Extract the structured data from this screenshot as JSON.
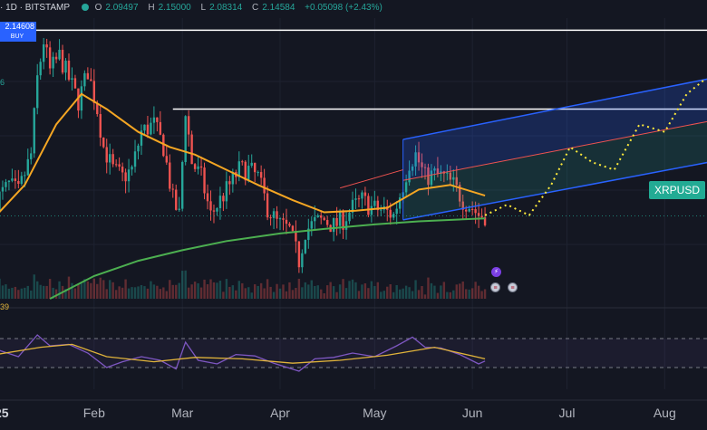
{
  "header": {
    "symbol_text": "· 1D · BITSTAMP",
    "ohlc": [
      {
        "key": "O",
        "value": "2.09497"
      },
      {
        "key": "H",
        "value": "2.15000"
      },
      {
        "key": "L",
        "value": "2.08314"
      },
      {
        "key": "C",
        "value": "2.14584"
      },
      {
        "key": "",
        "value": "+0.05098 (+2.43%)"
      }
    ]
  },
  "buy_box": {
    "price": "2.14608",
    "label": "BUY"
  },
  "left_tick_label": "6",
  "price_tag": {
    "label": "XRPUSD"
  },
  "indicator": {
    "label": "39"
  },
  "colors": {
    "up": "#26a69a",
    "down": "#ef5350",
    "ma_short": "#f5a623",
    "ma_long": "#4caf50",
    "channel": "#2962ff",
    "projection": "#ffeb3b",
    "oscillator": "#7e57c2",
    "signal": "#e0b33a"
  },
  "chart_data": {
    "type": "candlestick",
    "symbol": "XRPUSD",
    "exchange": "BITSTAMP",
    "interval": "1D",
    "x_range": [
      "2025-01-01",
      "2025-08-15"
    ],
    "y_range": [
      1.6,
      3.45
    ],
    "x_tick_labels": [
      {
        "date": "2025-01-01",
        "label": "25"
      },
      {
        "date": "2025-02-01",
        "label": "Feb"
      },
      {
        "date": "2025-03-01",
        "label": "Mar"
      },
      {
        "date": "2025-04-01",
        "label": "Apr"
      },
      {
        "date": "2025-05-01",
        "label": "May"
      },
      {
        "date": "2025-06-01",
        "label": "Jun"
      },
      {
        "date": "2025-07-01",
        "label": "Jul"
      },
      {
        "date": "2025-08-01",
        "label": "Aug"
      }
    ],
    "price_path": [
      [
        "2025-01-01",
        2.25
      ],
      [
        "2025-01-05",
        2.35
      ],
      [
        "2025-01-08",
        2.3
      ],
      [
        "2025-01-12",
        2.55
      ],
      [
        "2025-01-14",
        3.05
      ],
      [
        "2025-01-16",
        3.3
      ],
      [
        "2025-01-18",
        3.1
      ],
      [
        "2025-01-21",
        3.2
      ],
      [
        "2025-01-24",
        3.05
      ],
      [
        "2025-01-27",
        2.9
      ],
      [
        "2025-01-30",
        3.1
      ],
      [
        "2025-02-02",
        2.85
      ],
      [
        "2025-02-04",
        2.6
      ],
      [
        "2025-02-07",
        2.45
      ],
      [
        "2025-02-10",
        2.4
      ],
      [
        "2025-02-13",
        2.45
      ],
      [
        "2025-02-16",
        2.7
      ],
      [
        "2025-02-20",
        2.75
      ],
      [
        "2025-02-23",
        2.6
      ],
      [
        "2025-02-26",
        2.25
      ],
      [
        "2025-02-28",
        2.15
      ],
      [
        "2025-03-02",
        2.85
      ],
      [
        "2025-03-04",
        2.5
      ],
      [
        "2025-03-07",
        2.4
      ],
      [
        "2025-03-10",
        2.15
      ],
      [
        "2025-03-13",
        2.25
      ],
      [
        "2025-03-16",
        2.35
      ],
      [
        "2025-03-19",
        2.45
      ],
      [
        "2025-03-22",
        2.45
      ],
      [
        "2025-03-25",
        2.4
      ],
      [
        "2025-03-28",
        2.2
      ],
      [
        "2025-03-31",
        2.1
      ],
      [
        "2025-04-04",
        2.05
      ],
      [
        "2025-04-07",
        1.85
      ],
      [
        "2025-04-09",
        2.05
      ],
      [
        "2025-04-12",
        2.1
      ],
      [
        "2025-04-15",
        2.12
      ],
      [
        "2025-04-18",
        2.08
      ],
      [
        "2025-04-21",
        2.12
      ],
      [
        "2025-04-24",
        2.2
      ],
      [
        "2025-04-27",
        2.25
      ],
      [
        "2025-04-30",
        2.2
      ],
      [
        "2025-05-04",
        2.18
      ],
      [
        "2025-05-07",
        2.15
      ],
      [
        "2025-05-10",
        2.35
      ],
      [
        "2025-05-12",
        2.5
      ],
      [
        "2025-05-14",
        2.55
      ],
      [
        "2025-05-17",
        2.4
      ],
      [
        "2025-05-20",
        2.42
      ],
      [
        "2025-05-23",
        2.4
      ],
      [
        "2025-05-26",
        2.35
      ],
      [
        "2025-05-29",
        2.25
      ],
      [
        "2025-06-01",
        2.2
      ],
      [
        "2025-06-03",
        2.15
      ],
      [
        "2025-06-05",
        2.15
      ]
    ],
    "ma_short": [
      [
        "2025-01-01",
        2.15
      ],
      [
        "2025-01-10",
        2.35
      ],
      [
        "2025-01-20",
        2.75
      ],
      [
        "2025-01-28",
        2.95
      ],
      [
        "2025-02-05",
        2.85
      ],
      [
        "2025-02-15",
        2.7
      ],
      [
        "2025-02-25",
        2.6
      ],
      [
        "2025-03-05",
        2.55
      ],
      [
        "2025-03-15",
        2.45
      ],
      [
        "2025-03-25",
        2.35
      ],
      [
        "2025-04-05",
        2.25
      ],
      [
        "2025-04-15",
        2.17
      ],
      [
        "2025-04-25",
        2.18
      ],
      [
        "2025-05-05",
        2.2
      ],
      [
        "2025-05-15",
        2.32
      ],
      [
        "2025-05-25",
        2.35
      ],
      [
        "2025-06-05",
        2.28
      ]
    ],
    "ma_long": [
      [
        "2025-01-18",
        1.6
      ],
      [
        "2025-02-01",
        1.75
      ],
      [
        "2025-02-15",
        1.85
      ],
      [
        "2025-03-01",
        1.92
      ],
      [
        "2025-03-15",
        1.98
      ],
      [
        "2025-04-01",
        2.03
      ],
      [
        "2025-04-15",
        2.06
      ],
      [
        "2025-05-01",
        2.09
      ],
      [
        "2025-05-15",
        2.11
      ],
      [
        "2025-06-05",
        2.13
      ]
    ],
    "horizontal_levels": [
      3.37,
      2.85
    ],
    "channel": {
      "start": "2025-05-10",
      "end": "2025-08-15",
      "upper": [
        2.65,
        3.05
      ],
      "middle": [
        2.38,
        2.77
      ],
      "lower": [
        2.12,
        2.5
      ]
    },
    "projection_path": [
      [
        "2025-06-05",
        2.15
      ],
      [
        "2025-06-12",
        2.22
      ],
      [
        "2025-06-19",
        2.15
      ],
      [
        "2025-06-26",
        2.35
      ],
      [
        "2025-07-02",
        2.6
      ],
      [
        "2025-07-09",
        2.5
      ],
      [
        "2025-07-16",
        2.45
      ],
      [
        "2025-07-24",
        2.75
      ],
      [
        "2025-08-01",
        2.7
      ],
      [
        "2025-08-08",
        2.95
      ],
      [
        "2025-08-14",
        3.05
      ]
    ],
    "last_price": 2.14584,
    "volume_range": [
      0,
      1
    ],
    "oscillator": {
      "range": [
        0,
        100
      ],
      "upper_level": 70,
      "lower_level": 30,
      "value": 39,
      "line": [
        [
          "2025-01-01",
          55
        ],
        [
          "2025-01-08",
          45
        ],
        [
          "2025-01-14",
          75
        ],
        [
          "2025-01-18",
          60
        ],
        [
          "2025-01-24",
          62
        ],
        [
          "2025-01-30",
          50
        ],
        [
          "2025-02-05",
          30
        ],
        [
          "2025-02-10",
          38
        ],
        [
          "2025-02-16",
          45
        ],
        [
          "2025-02-22",
          40
        ],
        [
          "2025-02-27",
          28
        ],
        [
          "2025-03-02",
          65
        ],
        [
          "2025-03-06",
          40
        ],
        [
          "2025-03-12",
          35
        ],
        [
          "2025-03-18",
          48
        ],
        [
          "2025-03-24",
          46
        ],
        [
          "2025-03-30",
          36
        ],
        [
          "2025-04-07",
          25
        ],
        [
          "2025-04-12",
          42
        ],
        [
          "2025-04-18",
          44
        ],
        [
          "2025-04-24",
          50
        ],
        [
          "2025-05-01",
          45
        ],
        [
          "2025-05-08",
          60
        ],
        [
          "2025-05-13",
          72
        ],
        [
          "2025-05-17",
          58
        ],
        [
          "2025-05-22",
          57
        ],
        [
          "2025-05-28",
          48
        ],
        [
          "2025-06-03",
          35
        ],
        [
          "2025-06-05",
          39
        ]
      ],
      "signal": [
        [
          "2025-01-01",
          48
        ],
        [
          "2025-01-15",
          58
        ],
        [
          "2025-01-25",
          62
        ],
        [
          "2025-02-05",
          45
        ],
        [
          "2025-02-20",
          38
        ],
        [
          "2025-03-05",
          44
        ],
        [
          "2025-03-20",
          42
        ],
        [
          "2025-04-05",
          36
        ],
        [
          "2025-04-20",
          40
        ],
        [
          "2025-05-05",
          47
        ],
        [
          "2025-05-20",
          58
        ],
        [
          "2025-06-05",
          42
        ]
      ]
    }
  }
}
